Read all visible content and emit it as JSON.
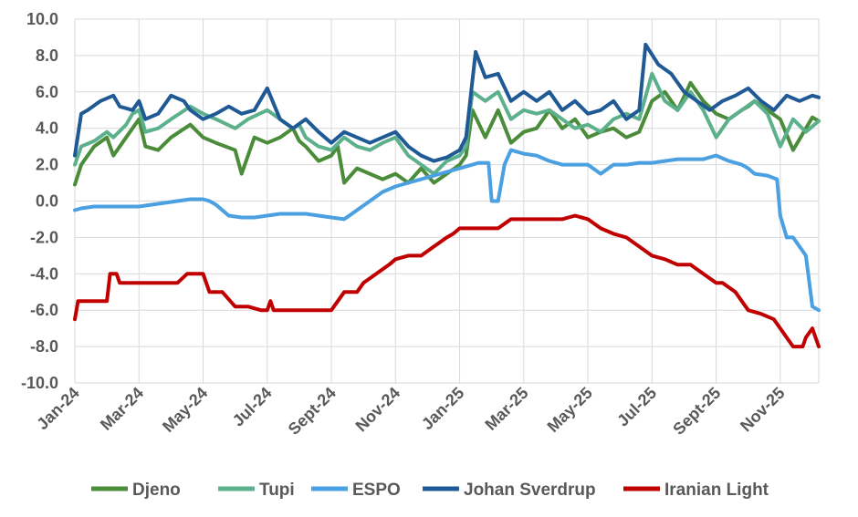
{
  "chart_data": {
    "type": "line",
    "title": "",
    "xlabel": "",
    "ylabel": "",
    "ylim": [
      -10,
      10
    ],
    "yticks": [
      "10.0",
      "8.0",
      "6.0",
      "4.0",
      "2.0",
      "0.0",
      "-2.0",
      "-4.0",
      "-6.0",
      "-8.0",
      "-10.0"
    ],
    "ytick_values": [
      10,
      8,
      6,
      4,
      2,
      0,
      -2,
      -4,
      -6,
      -8,
      -10
    ],
    "x_range_months": [
      0,
      11.6
    ],
    "x_tick_labels": [
      "Jan-24",
      "Mar-24",
      "May-24",
      "Jul-24",
      "Sept-24",
      "Nov-24",
      "Jan-25",
      "Mar-25",
      "May-25",
      "Jul-25",
      "Sept-25",
      "Nov-25"
    ],
    "x_tick_positions_months": [
      0,
      1,
      2,
      3,
      4,
      5,
      6,
      7,
      8,
      9,
      10,
      11
    ],
    "grid": true,
    "legend_position": "bottom",
    "series": [
      {
        "name": "Djeno",
        "color": "#4a8c3a",
        "x": [
          0,
          0.1,
          0.3,
          0.5,
          0.6,
          0.8,
          0.9,
          1.0,
          1.1,
          1.3,
          1.5,
          1.8,
          2.0,
          2.2,
          2.5,
          2.6,
          2.8,
          3.0,
          3.2,
          3.4,
          3.5,
          3.6,
          3.8,
          4.0,
          4.1,
          4.2,
          4.4,
          4.6,
          4.8,
          5.0,
          5.2,
          5.4,
          5.6,
          5.8,
          6.0,
          6.1,
          6.2,
          6.4,
          6.6,
          6.8,
          7.0,
          7.2,
          7.4,
          7.6,
          7.8,
          8.0,
          8.2,
          8.4,
          8.6,
          8.8,
          9.0,
          9.2,
          9.4,
          9.6,
          9.8,
          10.0,
          10.2,
          10.4,
          10.5,
          10.6,
          10.8,
          11.0,
          11.2,
          11.4,
          11.5,
          11.6
        ],
        "values": [
          0.9,
          2.0,
          3.0,
          3.5,
          2.5,
          3.5,
          4.0,
          4.5,
          3.0,
          2.8,
          3.5,
          4.2,
          3.5,
          3.2,
          2.8,
          1.5,
          3.5,
          3.2,
          3.5,
          4.0,
          3.3,
          3.0,
          2.2,
          2.5,
          3.0,
          1.0,
          1.8,
          1.5,
          1.2,
          1.5,
          1.0,
          1.8,
          1.0,
          1.5,
          2.0,
          2.5,
          5.0,
          3.5,
          5.0,
          3.2,
          3.8,
          4.0,
          5.0,
          4.0,
          4.5,
          3.5,
          3.8,
          4.0,
          3.5,
          3.8,
          5.5,
          6.0,
          5.0,
          6.5,
          5.5,
          4.8,
          4.5,
          5.0,
          5.2,
          5.5,
          5.0,
          4.5,
          2.8,
          4.0,
          4.6,
          4.4
        ]
      },
      {
        "name": "Tupi",
        "color": "#5cb08c",
        "x": [
          0,
          0.1,
          0.3,
          0.5,
          0.6,
          0.8,
          0.9,
          1.0,
          1.1,
          1.3,
          1.5,
          1.8,
          2.0,
          2.2,
          2.5,
          2.7,
          3.0,
          3.2,
          3.4,
          3.5,
          3.6,
          3.8,
          4.0,
          4.2,
          4.4,
          4.6,
          4.8,
          5.0,
          5.2,
          5.4,
          5.6,
          5.8,
          6.0,
          6.1,
          6.2,
          6.4,
          6.6,
          6.8,
          7.0,
          7.2,
          7.4,
          7.6,
          7.8,
          8.0,
          8.2,
          8.4,
          8.6,
          8.8,
          9.0,
          9.2,
          9.4,
          9.6,
          9.8,
          10.0,
          10.2,
          10.4,
          10.6,
          10.8,
          11.0,
          11.2,
          11.4,
          11.6
        ],
        "values": [
          2.0,
          3.0,
          3.3,
          3.8,
          3.5,
          4.2,
          4.8,
          5.0,
          3.8,
          4.0,
          4.5,
          5.2,
          4.8,
          4.5,
          4.0,
          4.5,
          5.0,
          4.5,
          4.0,
          4.2,
          3.5,
          3.0,
          2.8,
          3.5,
          3.0,
          2.8,
          3.2,
          3.5,
          2.5,
          2.0,
          1.5,
          2.2,
          2.5,
          3.0,
          6.0,
          5.5,
          6.0,
          4.5,
          5.0,
          4.8,
          5.0,
          4.5,
          4.0,
          4.2,
          3.8,
          4.5,
          4.8,
          4.5,
          7.0,
          5.5,
          5.0,
          6.0,
          5.0,
          3.5,
          4.5,
          5.0,
          5.5,
          4.8,
          3.0,
          4.5,
          3.8,
          4.4
        ]
      },
      {
        "name": "ESPO",
        "color": "#4aa0e0",
        "x": [
          0,
          0.1,
          0.3,
          0.5,
          0.7,
          0.9,
          1.0,
          1.2,
          1.4,
          1.6,
          1.8,
          2.0,
          2.1,
          2.2,
          2.4,
          2.6,
          2.8,
          3.0,
          3.2,
          3.4,
          3.6,
          3.8,
          4.0,
          4.2,
          4.4,
          4.6,
          4.8,
          5.0,
          5.2,
          5.4,
          5.6,
          5.8,
          6.0,
          6.2,
          6.3,
          6.45,
          6.5,
          6.6,
          6.7,
          6.8,
          7.0,
          7.2,
          7.4,
          7.6,
          7.8,
          8.0,
          8.2,
          8.4,
          8.6,
          8.8,
          9.0,
          9.2,
          9.4,
          9.6,
          9.8,
          10.0,
          10.2,
          10.4,
          10.5,
          10.6,
          10.8,
          10.95,
          11.0,
          11.1,
          11.2,
          11.3,
          11.4,
          11.5,
          11.6
        ],
        "values": [
          -0.5,
          -0.4,
          -0.3,
          -0.3,
          -0.3,
          -0.3,
          -0.3,
          -0.2,
          -0.1,
          0.0,
          0.1,
          0.1,
          0.0,
          -0.2,
          -0.8,
          -0.9,
          -0.9,
          -0.8,
          -0.7,
          -0.7,
          -0.7,
          -0.8,
          -0.9,
          -1.0,
          -0.5,
          0.0,
          0.5,
          0.8,
          1.0,
          1.2,
          1.4,
          1.6,
          1.8,
          2.0,
          2.1,
          2.1,
          0.0,
          0.0,
          2.0,
          2.8,
          2.6,
          2.5,
          2.2,
          2.0,
          2.0,
          2.0,
          1.5,
          2.0,
          2.0,
          2.1,
          2.1,
          2.2,
          2.3,
          2.3,
          2.3,
          2.5,
          2.2,
          2.0,
          1.8,
          1.5,
          1.4,
          1.2,
          -0.8,
          -2.0,
          -2.0,
          -2.5,
          -3.0,
          -5.8,
          -6.0
        ]
      },
      {
        "name": "Johan Sverdrup",
        "color": "#1f5a96",
        "x": [
          0,
          0.1,
          0.2,
          0.4,
          0.6,
          0.7,
          0.9,
          1.0,
          1.1,
          1.3,
          1.5,
          1.7,
          1.8,
          2.0,
          2.2,
          2.4,
          2.6,
          2.8,
          3.0,
          3.2,
          3.4,
          3.6,
          3.8,
          4.0,
          4.2,
          4.4,
          4.6,
          4.8,
          5.0,
          5.2,
          5.4,
          5.6,
          5.8,
          6.0,
          6.1,
          6.25,
          6.4,
          6.6,
          6.8,
          7.0,
          7.2,
          7.4,
          7.6,
          7.8,
          8.0,
          8.2,
          8.4,
          8.6,
          8.8,
          8.9,
          9.1,
          9.3,
          9.5,
          9.7,
          9.9,
          10.1,
          10.3,
          10.5,
          10.7,
          10.9,
          11.1,
          11.3,
          11.5,
          11.6
        ],
        "values": [
          2.5,
          4.8,
          5.0,
          5.5,
          5.8,
          5.2,
          5.0,
          5.5,
          4.5,
          4.8,
          5.8,
          5.5,
          5.0,
          4.5,
          4.8,
          5.2,
          4.8,
          5.0,
          6.2,
          4.5,
          4.0,
          4.5,
          3.8,
          3.2,
          3.8,
          3.5,
          3.2,
          3.5,
          3.8,
          3.0,
          2.5,
          2.2,
          2.4,
          2.8,
          3.5,
          8.2,
          6.8,
          7.0,
          5.5,
          6.0,
          5.5,
          6.0,
          5.0,
          5.5,
          4.8,
          5.0,
          5.5,
          4.5,
          5.0,
          8.6,
          7.5,
          7.0,
          6.0,
          5.5,
          5.0,
          5.5,
          5.8,
          6.2,
          5.5,
          5.0,
          5.8,
          5.5,
          5.8,
          5.7
        ]
      },
      {
        "name": "Iranian Light",
        "color": "#c00000",
        "x": [
          0,
          0.05,
          0.1,
          0.3,
          0.5,
          0.55,
          0.65,
          0.7,
          1.0,
          1.5,
          1.6,
          1.75,
          1.8,
          2.0,
          2.1,
          2.25,
          2.3,
          2.5,
          2.7,
          2.9,
          3.0,
          3.05,
          3.1,
          3.5,
          3.9,
          4.0,
          4.1,
          4.2,
          4.4,
          4.5,
          4.7,
          4.9,
          5.0,
          5.2,
          5.4,
          5.6,
          5.8,
          5.9,
          6.0,
          6.2,
          6.4,
          6.6,
          6.8,
          7.0,
          7.2,
          7.4,
          7.6,
          7.8,
          8.0,
          8.2,
          8.4,
          8.6,
          8.8,
          9.0,
          9.2,
          9.4,
          9.6,
          9.8,
          10.0,
          10.1,
          10.3,
          10.5,
          10.7,
          10.9,
          11.0,
          11.2,
          11.35,
          11.4,
          11.5,
          11.6
        ],
        "values": [
          -6.5,
          -5.5,
          -5.5,
          -5.5,
          -5.5,
          -4.0,
          -4.0,
          -4.5,
          -4.5,
          -4.5,
          -4.5,
          -4.0,
          -4.0,
          -4.0,
          -5.0,
          -5.0,
          -5.0,
          -5.8,
          -5.8,
          -6.0,
          -6.0,
          -5.5,
          -6.0,
          -6.0,
          -6.0,
          -6.0,
          -5.5,
          -5.0,
          -5.0,
          -4.5,
          -4.0,
          -3.5,
          -3.2,
          -3.0,
          -3.0,
          -2.5,
          -2.0,
          -1.8,
          -1.5,
          -1.5,
          -1.5,
          -1.5,
          -1.0,
          -1.0,
          -1.0,
          -1.0,
          -1.0,
          -0.8,
          -1.0,
          -1.5,
          -1.8,
          -2.0,
          -2.5,
          -3.0,
          -3.2,
          -3.5,
          -3.5,
          -4.0,
          -4.5,
          -4.5,
          -5.0,
          -6.0,
          -6.2,
          -6.5,
          -7.0,
          -8.0,
          -8.0,
          -7.5,
          -7.0,
          -8.0
        ]
      }
    ]
  }
}
